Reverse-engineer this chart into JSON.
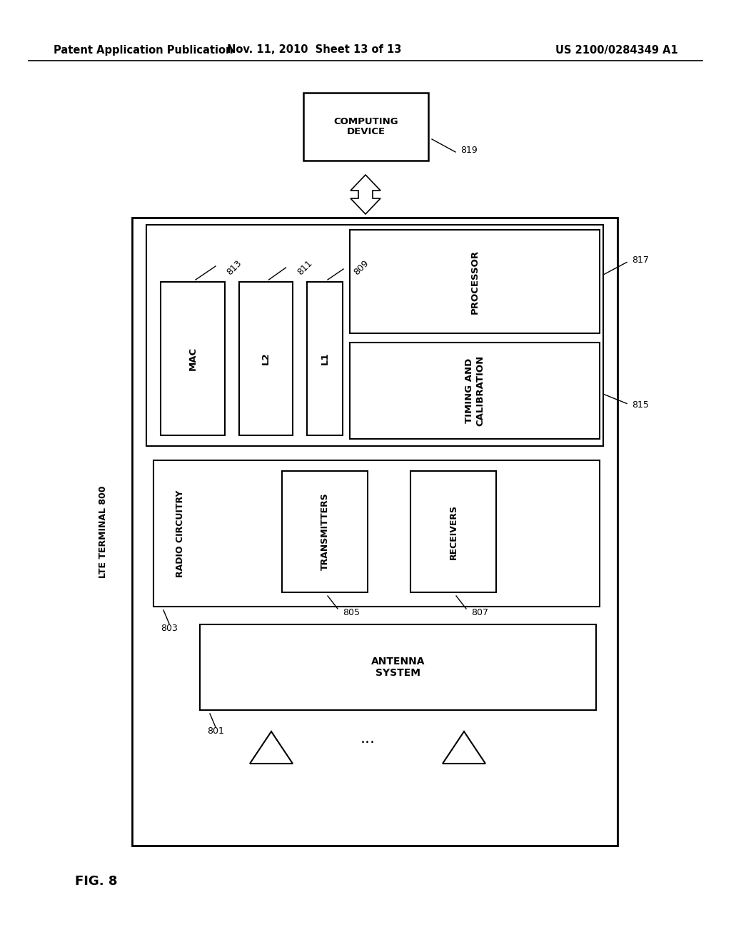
{
  "bg_color": "#ffffff",
  "header_left": "Patent Application Publication",
  "header_mid": "Nov. 11, 2010  Sheet 13 of 13",
  "header_right": "US 2100/0284349 A1",
  "fig_label": "FIG. 8",
  "computing_device_label": "COMPUTING\nDEVICE",
  "computing_device_ref": "819",
  "lte_terminal_label": "LTE TERMINAL 800",
  "processor_label": "PROCESSOR",
  "processor_ref": "817",
  "timing_label": "TIMING AND\nCALIBRATION",
  "timing_ref": "815",
  "mac_label": "MAC",
  "mac_ref": "813",
  "l2_label": "L2",
  "l2_ref": "811",
  "l1_label": "L1",
  "l1_ref": "809",
  "radio_label": "RADIO CIRCUITRY",
  "radio_ref": "803",
  "transmitters_label": "TRANSMITTERS",
  "transmitters_ref": "805",
  "receivers_label": "RECEIVERS",
  "receivers_ref": "807",
  "antenna_label": "ANTENNA\nSYSTEM",
  "antenna_ref": "801"
}
